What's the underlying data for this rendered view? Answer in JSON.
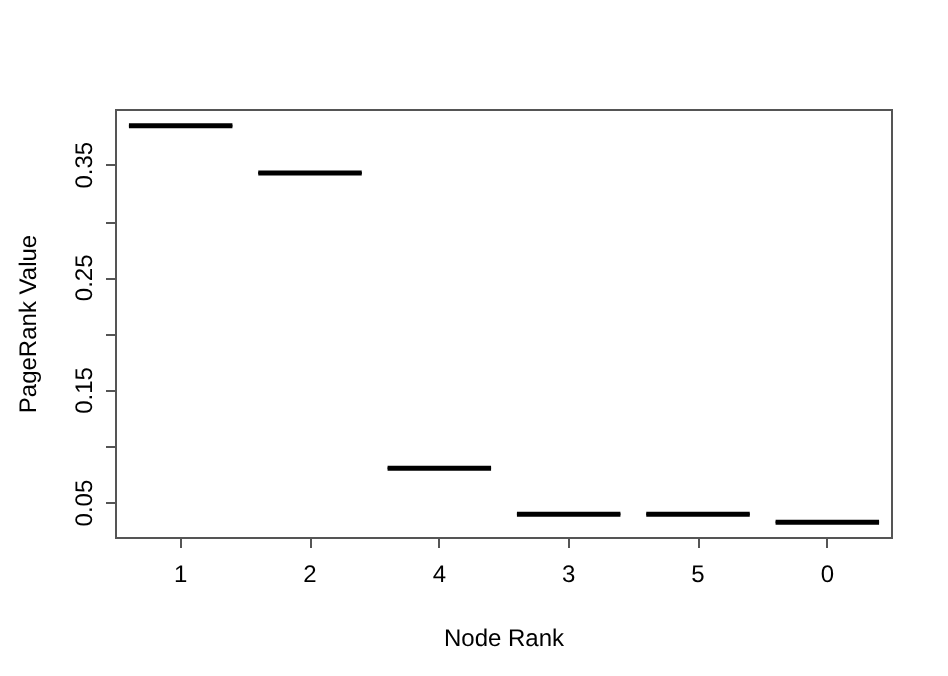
{
  "chart_data": {
    "type": "box",
    "xlabel": "Node Rank",
    "ylabel": "PageRank Value",
    "categories": [
      "1",
      "2",
      "4",
      "3",
      "5",
      "0"
    ],
    "color": "#000000",
    "boxes": [
      {
        "low": 0.385,
        "q1": 0.385,
        "median": 0.385,
        "q3": 0.385,
        "high": 0.385
      },
      {
        "low": 0.343,
        "q1": 0.343,
        "median": 0.343,
        "q3": 0.343,
        "high": 0.343
      },
      {
        "low": 0.081,
        "q1": 0.081,
        "median": 0.081,
        "q3": 0.081,
        "high": 0.081
      },
      {
        "low": 0.04,
        "q1": 0.04,
        "median": 0.04,
        "q3": 0.04,
        "high": 0.04
      },
      {
        "low": 0.04,
        "q1": 0.04,
        "median": 0.04,
        "q3": 0.04,
        "high": 0.04
      },
      {
        "low": 0.033,
        "q1": 0.033,
        "median": 0.033,
        "q3": 0.033,
        "high": 0.033
      }
    ],
    "ylim": [
      0.019,
      0.399
    ],
    "yticks": [
      0.05,
      {
        "value": 0.1,
        "label": null
      },
      0.15,
      {
        "value": 0.2,
        "label": null
      },
      0.25,
      {
        "value": 0.3,
        "label": null
      },
      0.35
    ]
  }
}
